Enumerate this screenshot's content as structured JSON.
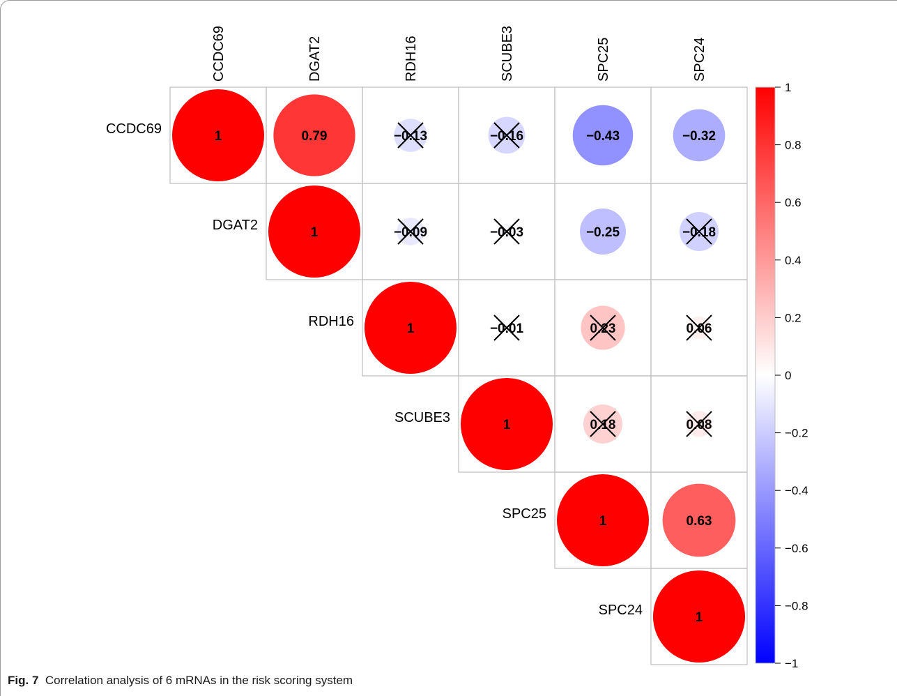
{
  "caption": {
    "label": "Fig. 7",
    "text": "Correlation analysis of 6 mRNAs in the risk scoring system"
  },
  "colors": {
    "negative": "#0000FF",
    "zero": "#FFFFFF",
    "positive": "#FF0000",
    "grid": "#bdbdbd",
    "text": "#000000"
  },
  "chart_data": {
    "type": "heatmap",
    "subtype": "correlation-matrix-upper-circles",
    "variables": [
      "CCDC69",
      "DGAT2",
      "RDH16",
      "SCUBE3",
      "SPC25",
      "SPC24"
    ],
    "matrix": [
      [
        1,
        0.79,
        -0.13,
        -0.16,
        -0.43,
        -0.32
      ],
      [
        0.79,
        1,
        -0.09,
        -0.03,
        -0.25,
        -0.18
      ],
      [
        -0.13,
        -0.09,
        1,
        -0.01,
        0.23,
        0.06
      ],
      [
        -0.16,
        -0.03,
        -0.01,
        1,
        0.18,
        0.08
      ],
      [
        -0.43,
        -0.25,
        0.23,
        0.18,
        1,
        0.63
      ],
      [
        -0.32,
        -0.18,
        0.06,
        0.08,
        0.63,
        1
      ]
    ],
    "cell_labels": [
      [
        "1",
        "0.79",
        "−0.13",
        "−0.16",
        "−0.43",
        "−0.32"
      ],
      [
        "",
        "1",
        "−0.09",
        "−0.03",
        "−0.25",
        "−0.18"
      ],
      [
        "",
        "",
        "1",
        "−0.01",
        "0.23",
        "0.06"
      ],
      [
        "",
        "",
        "",
        "1",
        "0.18",
        "0.08"
      ],
      [
        "",
        "",
        "",
        "",
        "1",
        "0.63"
      ],
      [
        "",
        "",
        "",
        "",
        "",
        "1"
      ]
    ],
    "insignificant": [
      [
        false,
        false,
        true,
        true,
        false,
        false
      ],
      [
        false,
        false,
        true,
        true,
        false,
        true
      ],
      [
        false,
        false,
        false,
        true,
        true,
        true
      ],
      [
        false,
        false,
        false,
        false,
        true,
        true
      ],
      [
        false,
        false,
        false,
        false,
        false,
        false
      ],
      [
        false,
        false,
        false,
        false,
        false,
        false
      ]
    ],
    "colorbar": {
      "range": [
        -1,
        1
      ],
      "ticks": [
        1,
        0.8,
        0.6,
        0.4,
        0.2,
        0,
        -0.2,
        -0.4,
        -0.6,
        -0.8,
        -1
      ],
      "tick_labels": [
        "1",
        "0.8",
        "0.6",
        "0.4",
        "0.2",
        "0",
        "−0.2",
        "−0.4",
        "−0.6",
        "−0.8",
        "−1"
      ]
    }
  }
}
